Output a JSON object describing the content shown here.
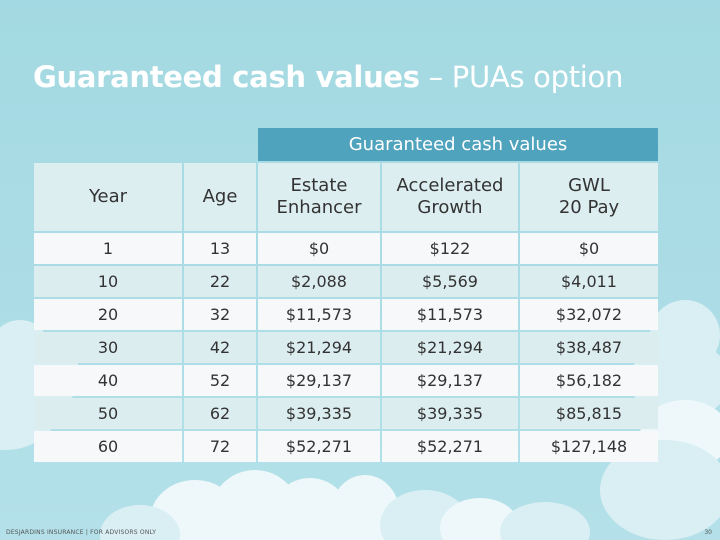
{
  "slide": {
    "title_bold": "Guaranteed cash values",
    "title_rest": " – PUAs option",
    "footer": "DESJARDINS INSURANCE | FOR ADVISORS ONLY",
    "page_number": "30"
  },
  "table": {
    "group_header": "Guaranteed cash values",
    "columns": [
      {
        "line1": "Year",
        "line2": ""
      },
      {
        "line1": "Age",
        "line2": ""
      },
      {
        "line1": "Estate",
        "line2": "Enhancer"
      },
      {
        "line1": "Accelerated",
        "line2": "Growth"
      },
      {
        "line1": "GWL",
        "line2": "20 Pay"
      }
    ],
    "rows": [
      [
        "1",
        "13",
        "$0",
        "$122",
        "$0"
      ],
      [
        "10",
        "22",
        "$2,088",
        "$5,569",
        "$4,011"
      ],
      [
        "20",
        "32",
        "$11,573",
        "$11,573",
        "$32,072"
      ],
      [
        "30",
        "42",
        "$21,294",
        "$21,294",
        "$38,487"
      ],
      [
        "40",
        "52",
        "$29,137",
        "$29,137",
        "$56,182"
      ],
      [
        "50",
        "62",
        "$39,335",
        "$39,335",
        "$85,815"
      ],
      [
        "60",
        "72",
        "$52,271",
        "$52,271",
        "$127,148"
      ]
    ]
  }
}
